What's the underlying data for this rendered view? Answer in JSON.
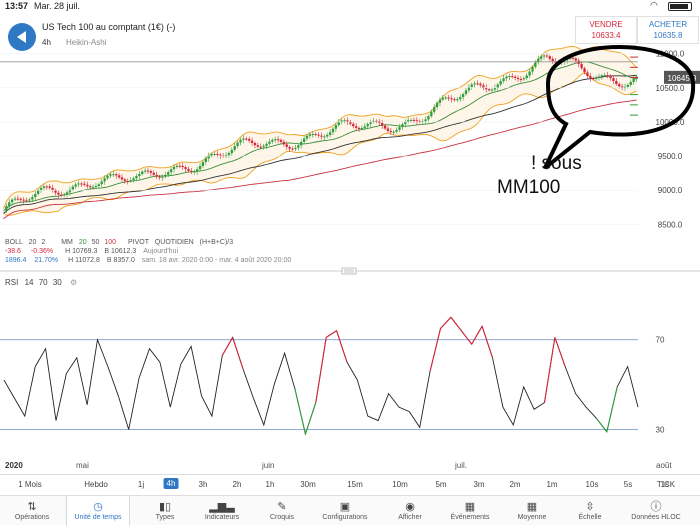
{
  "status": {
    "time": "13:57",
    "date": "Mar. 28 juil."
  },
  "header": {
    "instrument": "US Tech 100 au comptant (1€) (-)",
    "timeframe": "4h",
    "chart_style": "Heikin-Ashi",
    "sell_label": "VENDRE",
    "sell_price": "10633.4",
    "buy_label": "ACHETER",
    "buy_price": "10635.8"
  },
  "price_axis": {
    "ticks": [
      "11000.0",
      "10500.0",
      "10000.0",
      "9500.0",
      "9000.0",
      "8500.0"
    ],
    "current": "10645.9"
  },
  "annotation": {
    "line1": "! sous",
    "line2": "MM100"
  },
  "indicators": {
    "boll": {
      "name": "BOLL",
      "p1": "20",
      "p2": "2"
    },
    "mm": {
      "name": "MM",
      "p1": "20",
      "p2": "50",
      "p3": "100"
    },
    "pivot": {
      "name": "PIVOT",
      "period": "QUOTIDIEN",
      "formula": "(H+B+C)/3"
    },
    "change_abs": "-38.6",
    "change_pct": "-0.36%",
    "h_today": "H 10769.3",
    "b_today": "B 10612.3",
    "today_label": "Aujourd'hui",
    "period_abs": "1896.4",
    "period_pct": "21.70%",
    "h_period": "H 11072.8",
    "b_period": "B 8357.0",
    "period_range": "sam. 18 avr. 2020 0:00 - mar. 4 août 2020 20:00"
  },
  "rsi": {
    "name": "RSI",
    "period": "14",
    "upper": "70",
    "lower": "30",
    "upper_tick": "70",
    "lower_tick": "30"
  },
  "dates": {
    "year": "2020",
    "m1": "mai",
    "m2": "juin",
    "m3": "juil.",
    "m4": "août"
  },
  "colors": {
    "up": "#2e9e3e",
    "down": "#d6263a",
    "accent": "#2f78c4",
    "ma20": "#3a8f3a",
    "ma50": "#333333",
    "ma100": "#c9333f",
    "boll": "#f0a020"
  },
  "timeframes": [
    "1 Mois",
    "Hebdo",
    "1j",
    "4h",
    "3h",
    "2h",
    "1h",
    "30m",
    "15m",
    "10m",
    "5m",
    "3m",
    "2m",
    "1m",
    "10s",
    "5s",
    "1s",
    "TICK"
  ],
  "selected_timeframe": "4h",
  "toolbar": [
    "Opérations",
    "Unité de temps",
    "Types",
    "Indicateurs",
    "Croquis",
    "Configurations",
    "Afficher",
    "Événements",
    "Moyenne",
    "Échelle",
    "Données HLOC"
  ],
  "toolbar_icons": [
    "arrows-icon",
    "clock-icon",
    "candles-icon",
    "bars-icon",
    "pencil-icon",
    "layout-icon",
    "eye-icon",
    "calendar-icon",
    "calendar-grid-icon",
    "scale-icon",
    "info-icon"
  ],
  "active_tool": "Unité de temps",
  "chart_data": [
    {
      "type": "candlestick",
      "title": "US Tech 100 au comptant (1€) (-)",
      "x_range": [
        "2020-04-18",
        "2020-08-04"
      ],
      "ylim": [
        8300,
        11200
      ],
      "y_ticks": [
        8500,
        9000,
        9500,
        10000,
        10500,
        11000
      ],
      "series_close": {
        "x": [
          "2020-04-20",
          "2020-04-27",
          "2020-05-04",
          "2020-05-11",
          "2020-05-18",
          "2020-05-25",
          "2020-06-01",
          "2020-06-08",
          "2020-06-15",
          "2020-06-22",
          "2020-06-29",
          "2020-07-06",
          "2020-07-13",
          "2020-07-20",
          "2020-07-27"
        ],
        "y": [
          8700,
          8950,
          9200,
          9100,
          9400,
          9550,
          9700,
          9850,
          9900,
          10050,
          10300,
          10650,
          10900,
          10700,
          10645
        ]
      },
      "indicators": [
        "BOLL 20 2",
        "MM 20 50 100",
        "PIVOT QUOTIDIEN (H+B+C)/3"
      ]
    },
    {
      "type": "line",
      "title": "RSI 14 70 30",
      "ylim": [
        20,
        85
      ],
      "y_ticks": [
        30,
        70
      ],
      "series": [
        {
          "name": "RSI",
          "values": [
            52,
            44,
            36,
            58,
            66,
            34,
            55,
            62,
            41,
            70,
            58,
            45,
            30,
            53,
            66,
            60,
            40,
            59,
            67,
            45,
            36,
            63,
            71,
            57,
            44,
            32,
            50,
            64,
            48,
            28,
            42,
            71,
            74,
            60,
            52,
            36,
            34,
            46,
            40,
            38,
            31,
            56,
            75,
            80,
            74,
            68,
            76,
            62,
            40,
            32,
            49,
            39,
            42,
            71,
            58,
            46,
            40,
            35,
            29,
            49,
            58,
            40
          ]
        }
      ]
    }
  ]
}
